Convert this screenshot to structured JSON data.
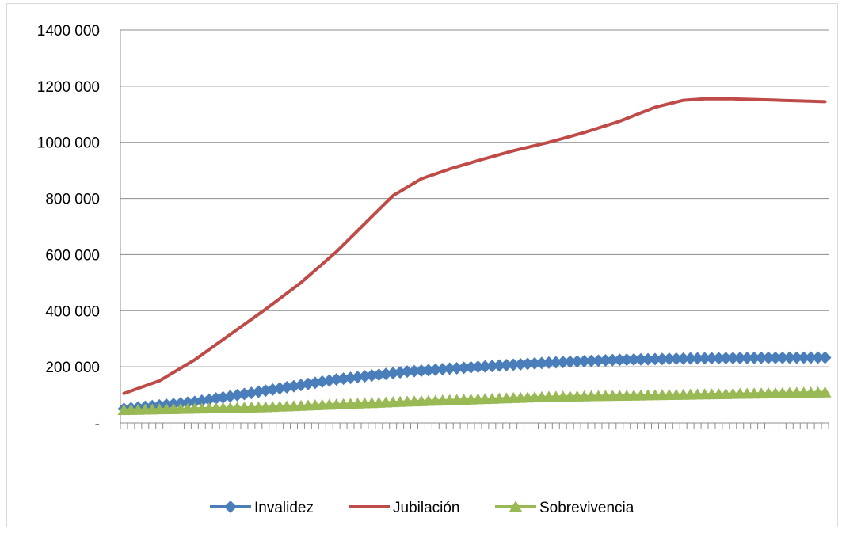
{
  "chart_data": {
    "type": "line",
    "title": "",
    "xlabel": "",
    "ylabel": "",
    "ylim": [
      0,
      1400000
    ],
    "y_ticks": [
      {
        "value": 0,
        "label": "-"
      },
      {
        "value": 200000,
        "label": "200 000"
      },
      {
        "value": 400000,
        "label": "400 000"
      },
      {
        "value": 600000,
        "label": "600 000"
      },
      {
        "value": 800000,
        "label": "800 000"
      },
      {
        "value": 1000000,
        "label": "1000 000"
      },
      {
        "value": 1200000,
        "label": "1200 000"
      },
      {
        "value": 1400000,
        "label": "1400 000"
      }
    ],
    "grid": true,
    "legend_position": "bottom",
    "x_count": 100,
    "series": [
      {
        "name": "Invalidez",
        "color": "#4a7ebb",
        "marker": "diamond",
        "anchors": [
          [
            0,
            50000
          ],
          [
            10,
            75000
          ],
          [
            20,
            115000
          ],
          [
            30,
            155000
          ],
          [
            40,
            183000
          ],
          [
            50,
            200000
          ],
          [
            60,
            215000
          ],
          [
            70,
            225000
          ],
          [
            80,
            230000
          ],
          [
            90,
            232000
          ],
          [
            99,
            233000
          ]
        ]
      },
      {
        "name": "Jubilación",
        "color": "#be4b48",
        "marker": "none",
        "anchors": [
          [
            0,
            105000
          ],
          [
            5,
            150000
          ],
          [
            10,
            225000
          ],
          [
            15,
            315000
          ],
          [
            20,
            405000
          ],
          [
            25,
            500000
          ],
          [
            30,
            610000
          ],
          [
            35,
            735000
          ],
          [
            38,
            810000
          ],
          [
            42,
            870000
          ],
          [
            46,
            905000
          ],
          [
            50,
            935000
          ],
          [
            55,
            970000
          ],
          [
            60,
            1000000
          ],
          [
            65,
            1035000
          ],
          [
            70,
            1075000
          ],
          [
            75,
            1125000
          ],
          [
            79,
            1150000
          ],
          [
            82,
            1155000
          ],
          [
            86,
            1155000
          ],
          [
            90,
            1152000
          ],
          [
            95,
            1148000
          ],
          [
            99,
            1145000
          ]
        ]
      },
      {
        "name": "Sobrevivencia",
        "color": "#98b954",
        "marker": "triangle",
        "anchors": [
          [
            0,
            45000
          ],
          [
            20,
            55000
          ],
          [
            40,
            75000
          ],
          [
            60,
            92000
          ],
          [
            80,
            100000
          ],
          [
            99,
            108000
          ]
        ]
      }
    ]
  }
}
